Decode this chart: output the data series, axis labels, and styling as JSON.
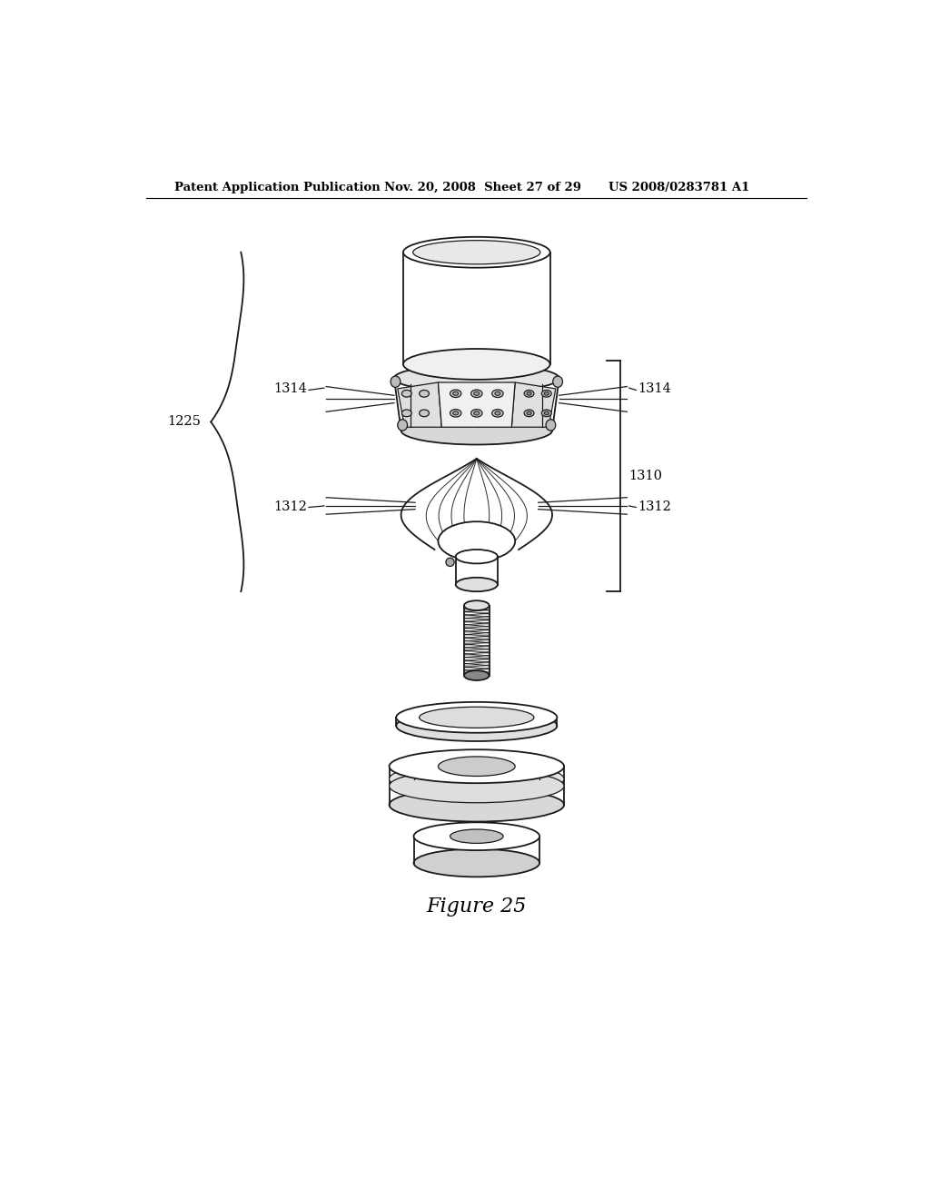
{
  "title": "Figure 25",
  "header_left": "Patent Application Publication",
  "header_mid": "Nov. 20, 2008  Sheet 27 of 29",
  "header_right": "US 2008/0283781 A1",
  "bg_color": "#ffffff",
  "label_1225": "1225",
  "label_1310": "1310",
  "label_1312a": "1312",
  "label_1312b": "1312",
  "label_1314a": "1314",
  "label_1314b": "1314",
  "fig_width": 10.24,
  "fig_height": 13.2
}
